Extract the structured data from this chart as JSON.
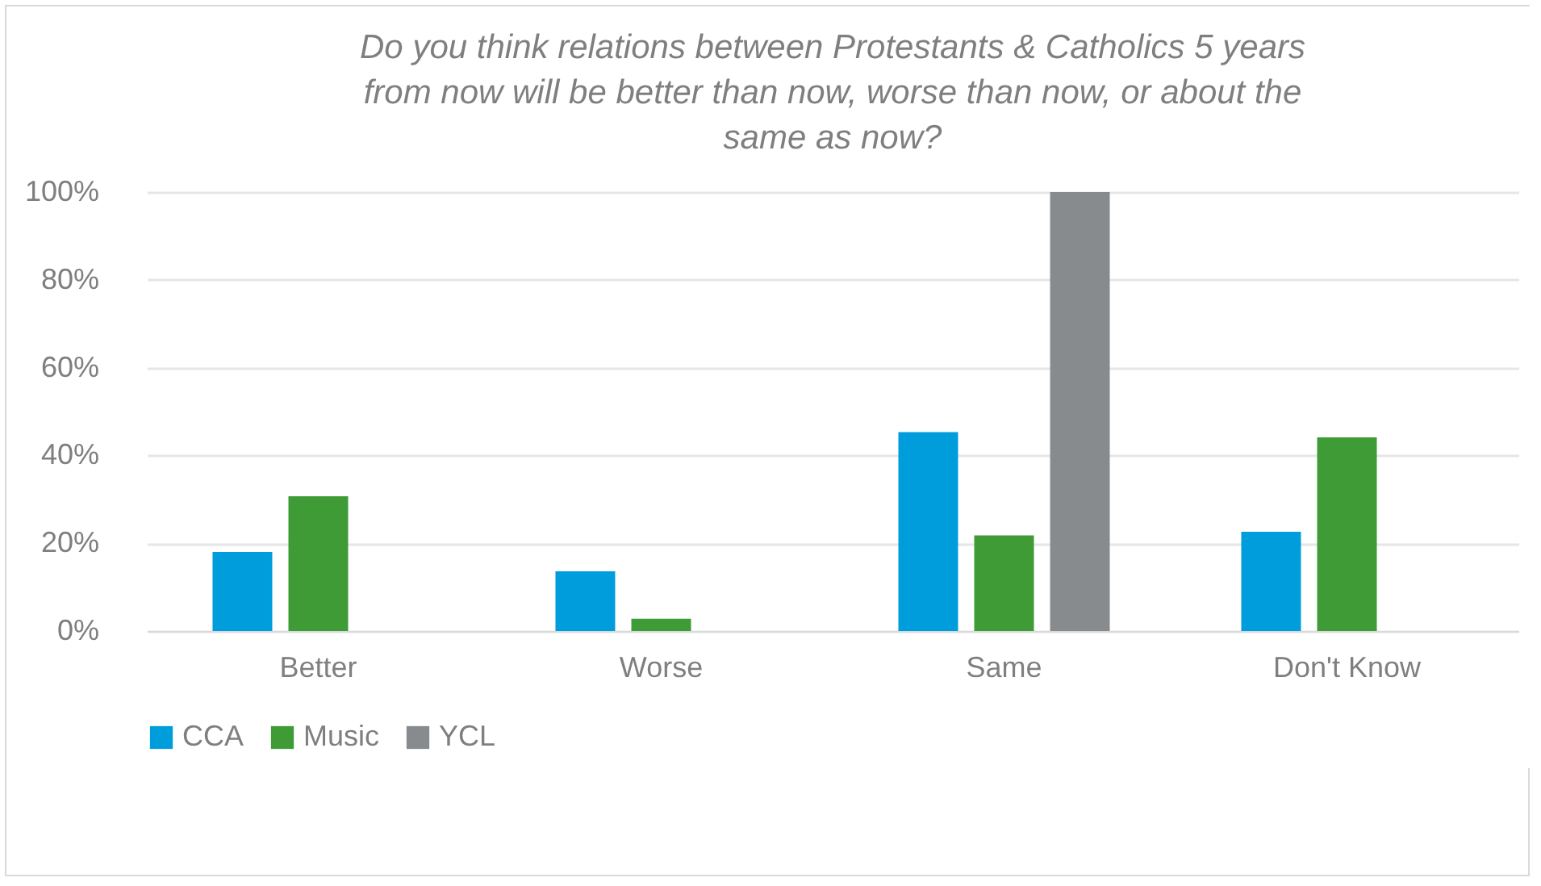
{
  "chart_data": {
    "type": "bar",
    "title": "Do you think relations between Protestants & Catholics 5 years from now will be better than now, worse than now, or about the same as now?",
    "categories": [
      "Better",
      "Worse",
      "Same",
      "Don't Know"
    ],
    "series": [
      {
        "name": "CCA",
        "color": "#009ddc",
        "values": [
          18.0,
          13.6,
          45.3,
          22.6
        ]
      },
      {
        "name": "Music",
        "color": "#3f9b35",
        "values": [
          30.7,
          2.8,
          21.8,
          44.1
        ]
      },
      {
        "name": "YCL",
        "color": "#888b8d",
        "values": [
          null,
          null,
          100,
          null
        ]
      }
    ],
    "ylim": [
      0,
      100
    ],
    "yticks": [
      {
        "value": 0,
        "label": "0%"
      },
      {
        "value": 20,
        "label": "20%"
      },
      {
        "value": 40,
        "label": "40%"
      },
      {
        "value": 60,
        "label": "60%"
      },
      {
        "value": 80,
        "label": "80%"
      },
      {
        "value": 100,
        "label": "100%"
      }
    ],
    "grid": "y",
    "legend": "bottom"
  }
}
